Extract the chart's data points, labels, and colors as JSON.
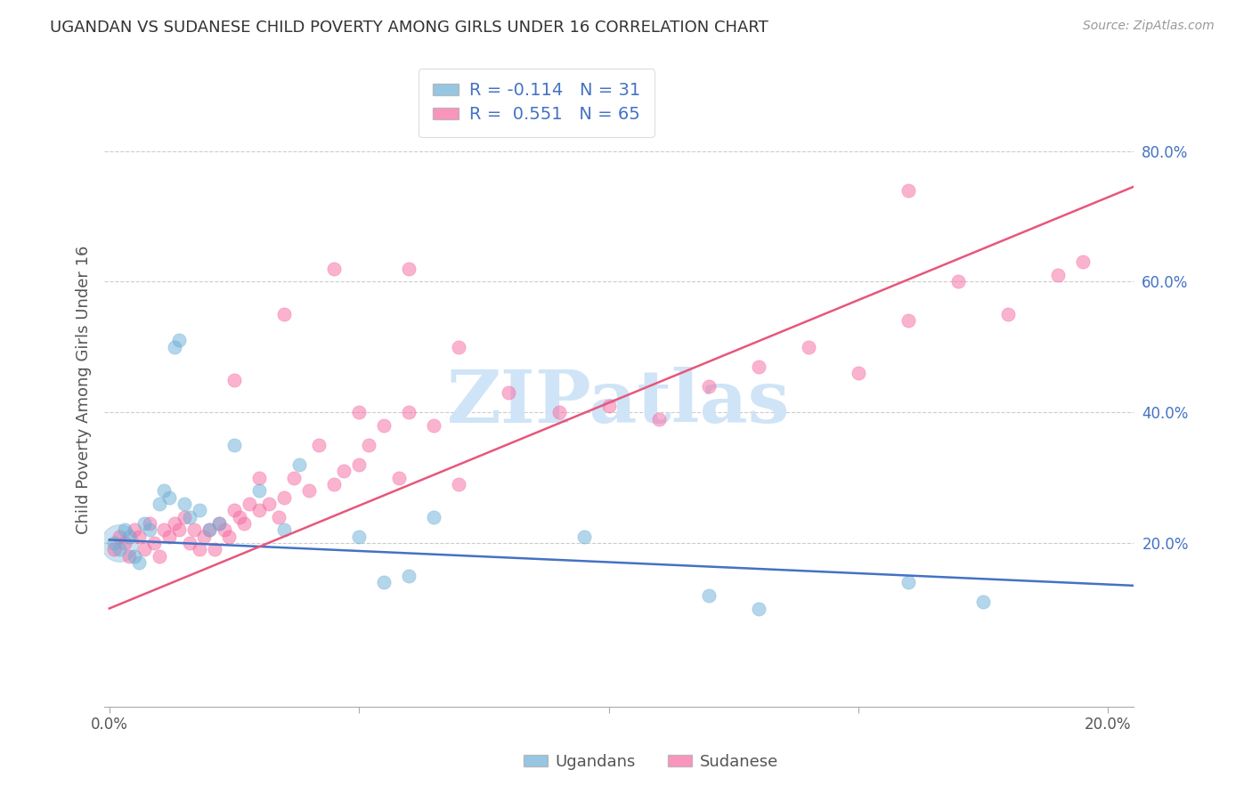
{
  "title": "UGANDAN VS SUDANESE CHILD POVERTY AMONG GIRLS UNDER 16 CORRELATION CHART",
  "source": "Source: ZipAtlas.com",
  "ylabel": "Child Poverty Among Girls Under 16",
  "xlim": [
    -0.001,
    0.205
  ],
  "ylim": [
    -0.05,
    0.92
  ],
  "xticks": [
    0.0,
    0.05,
    0.1,
    0.15,
    0.2
  ],
  "xtick_labels": [
    "0.0%",
    "",
    "",
    "",
    "20.0%"
  ],
  "yticks_right": [
    0.2,
    0.4,
    0.6,
    0.8
  ],
  "ytick_labels_right": [
    "20.0%",
    "40.0%",
    "60.0%",
    "80.0%"
  ],
  "ugandan_color": "#6baed6",
  "sudanese_color": "#f768a1",
  "ugandan_R": -0.114,
  "ugandan_N": 31,
  "sudanese_R": 0.551,
  "sudanese_N": 65,
  "watermark": "ZIPatlas",
  "watermark_color": "#d0e4f7",
  "ugandan_x": [
    0.001,
    0.002,
    0.003,
    0.004,
    0.005,
    0.006,
    0.007,
    0.008,
    0.01,
    0.011,
    0.012,
    0.013,
    0.014,
    0.015,
    0.016,
    0.018,
    0.02,
    0.022,
    0.025,
    0.03,
    0.035,
    0.038,
    0.05,
    0.055,
    0.06,
    0.065,
    0.095,
    0.12,
    0.13,
    0.16,
    0.175
  ],
  "ugandan_y": [
    0.2,
    0.19,
    0.22,
    0.21,
    0.18,
    0.17,
    0.23,
    0.22,
    0.26,
    0.28,
    0.27,
    0.5,
    0.51,
    0.26,
    0.24,
    0.25,
    0.22,
    0.23,
    0.35,
    0.28,
    0.22,
    0.32,
    0.21,
    0.14,
    0.15,
    0.24,
    0.21,
    0.12,
    0.1,
    0.14,
    0.11
  ],
  "ugandan_big_x": [
    0.002
  ],
  "ugandan_big_y": [
    0.2
  ],
  "ugandan_big_size": 900,
  "sudanese_x": [
    0.001,
    0.002,
    0.003,
    0.004,
    0.005,
    0.006,
    0.007,
    0.008,
    0.009,
    0.01,
    0.011,
    0.012,
    0.013,
    0.014,
    0.015,
    0.016,
    0.017,
    0.018,
    0.019,
    0.02,
    0.021,
    0.022,
    0.023,
    0.024,
    0.025,
    0.026,
    0.027,
    0.028,
    0.03,
    0.032,
    0.034,
    0.035,
    0.037,
    0.04,
    0.042,
    0.045,
    0.047,
    0.05,
    0.052,
    0.055,
    0.058,
    0.06,
    0.065,
    0.07,
    0.08,
    0.09,
    0.1,
    0.11,
    0.12,
    0.13,
    0.14,
    0.15,
    0.16,
    0.17,
    0.18,
    0.19,
    0.195,
    0.05,
    0.03,
    0.025,
    0.035,
    0.045,
    0.06,
    0.07,
    0.16
  ],
  "sudanese_y": [
    0.19,
    0.21,
    0.2,
    0.18,
    0.22,
    0.21,
    0.19,
    0.23,
    0.2,
    0.18,
    0.22,
    0.21,
    0.23,
    0.22,
    0.24,
    0.2,
    0.22,
    0.19,
    0.21,
    0.22,
    0.19,
    0.23,
    0.22,
    0.21,
    0.25,
    0.24,
    0.23,
    0.26,
    0.25,
    0.26,
    0.24,
    0.27,
    0.3,
    0.28,
    0.35,
    0.29,
    0.31,
    0.32,
    0.35,
    0.38,
    0.3,
    0.4,
    0.38,
    0.29,
    0.43,
    0.4,
    0.41,
    0.39,
    0.44,
    0.47,
    0.5,
    0.46,
    0.54,
    0.6,
    0.55,
    0.61,
    0.63,
    0.4,
    0.3,
    0.45,
    0.55,
    0.62,
    0.62,
    0.5,
    0.74
  ],
  "blue_line_x": [
    0.0,
    0.205
  ],
  "blue_line_y": [
    0.205,
    0.135
  ],
  "pink_line_x": [
    0.0,
    0.205
  ],
  "pink_line_y": [
    0.1,
    0.745
  ],
  "background_color": "#ffffff",
  "grid_color": "#cccccc",
  "axis_label_color": "#444444",
  "right_axis_color": "#4472c4"
}
